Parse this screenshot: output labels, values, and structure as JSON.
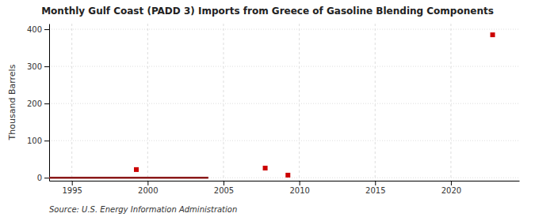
{
  "chart_data": {
    "type": "line",
    "title": "Monthly Gulf Coast (PADD 3) Imports from Greece of Gasoline Blending Components",
    "ylabel": "Thousand Barrels",
    "source": "Source: U.S. Energy Information Administration",
    "series": [
      {
        "type": "line",
        "color": "#8b1a1a",
        "line_style": "solid",
        "x": [
          1993.5,
          2004.0
        ],
        "values": [
          0,
          0
        ]
      },
      {
        "type": "scatter",
        "color": "#cc0000",
        "marker": "square",
        "x": [
          1999.25,
          2007.75,
          2009.25,
          2022.75
        ],
        "values": [
          22,
          26,
          7,
          385
        ]
      }
    ],
    "xlim": [
      1993.5,
      2024.5
    ],
    "xticks": [
      1995,
      2000,
      2005,
      2010,
      2015,
      2020
    ],
    "ylim": [
      -8,
      415
    ],
    "yticks": [
      0,
      100,
      200,
      300,
      400
    ],
    "grid": true
  }
}
